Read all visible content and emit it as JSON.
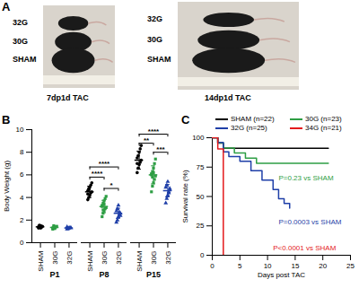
{
  "image_panel": {
    "label": "A",
    "photos": [
      {
        "caption": "7dp1d TAC",
        "rows": [
          "32G",
          "30G",
          "SHAM"
        ]
      },
      {
        "caption": "14dp1d TAC",
        "rows": [
          "32G",
          "30G",
          "SHAM"
        ]
      }
    ]
  },
  "chart_data": [
    {
      "type": "scatter",
      "label": "B",
      "ylabel": "Body Weight (g)",
      "ylim": [
        0,
        10
      ],
      "yticks": [
        0,
        2,
        4,
        6,
        8,
        10
      ],
      "categories": [
        "P1",
        "P8",
        "P15"
      ],
      "series": [
        {
          "name": "SHAM",
          "color": "#000000",
          "marker": "circle",
          "values": [
            1.4,
            4.5,
            7.3
          ],
          "errors": [
            0.15,
            0.5,
            0.8
          ],
          "points": [
            [
              1.3,
              1.4,
              1.5,
              1.35,
              1.45,
              1.4,
              1.55,
              1.3
            ],
            [
              3.8,
              4.0,
              4.2,
              4.4,
              4.5,
              4.6,
              4.7,
              4.9,
              5.1,
              5.3,
              4.3,
              4.8
            ],
            [
              6.2,
              6.6,
              6.9,
              7.1,
              7.3,
              7.5,
              7.7,
              8.0,
              8.3,
              8.6,
              7.0
            ]
          ]
        },
        {
          "name": "30G",
          "color": "#2e9e44",
          "marker": "square",
          "values": [
            1.35,
            3.2,
            6.0
          ],
          "errors": [
            0.1,
            0.55,
            0.8
          ],
          "points": [
            [
              1.2,
              1.3,
              1.35,
              1.4,
              1.45,
              1.3,
              1.5,
              1.25
            ],
            [
              2.3,
              2.6,
              2.8,
              3.0,
              3.1,
              3.3,
              3.5,
              3.7,
              3.9,
              4.1,
              3.2,
              2.9,
              3.4
            ],
            [
              4.5,
              5.0,
              5.3,
              5.6,
              5.9,
              6.1,
              6.3,
              6.6,
              7.0,
              7.4,
              6.0,
              5.8,
              6.2
            ]
          ]
        },
        {
          "name": "32G",
          "color": "#1f3fa8",
          "marker": "triangle",
          "values": [
            1.3,
            2.6,
            4.6
          ],
          "errors": [
            0.07,
            0.45,
            0.55
          ],
          "points": [
            [
              1.2,
              1.25,
              1.3,
              1.35,
              1.3,
              1.4,
              1.25
            ],
            [
              1.8,
              2.0,
              2.3,
              2.5,
              2.6,
              2.8,
              3.0,
              3.3,
              2.7,
              2.4
            ],
            [
              3.5,
              3.9,
              4.2,
              4.5,
              4.7,
              4.9,
              5.1,
              5.4,
              4.4,
              4.8
            ]
          ]
        }
      ],
      "annotations": [
        {
          "category": "P8",
          "from": "SHAM",
          "to": "30G",
          "y": 5.8,
          "text": "****"
        },
        {
          "category": "P8",
          "from": "SHAM",
          "to": "32G",
          "y": 6.7,
          "text": "****"
        },
        {
          "category": "P8",
          "from": "30G",
          "to": "32G",
          "y": 4.8,
          "text": "*"
        },
        {
          "category": "P15",
          "from": "SHAM",
          "to": "30G",
          "y": 8.8,
          "text": "**"
        },
        {
          "category": "P15",
          "from": "30G",
          "to": "32G",
          "y": 8.0,
          "text": "***"
        },
        {
          "category": "P15",
          "from": "SHAM",
          "to": "32G",
          "y": 9.6,
          "text": "****"
        }
      ]
    },
    {
      "type": "line",
      "label": "C",
      "xlabel": "Days post TAC",
      "ylabel": "Survival rate (%)",
      "xlim": [
        0,
        25
      ],
      "xticks": [
        0,
        5,
        10,
        15,
        20,
        25
      ],
      "ylim": [
        0,
        100
      ],
      "yticks": [
        0,
        25,
        50,
        75,
        100
      ],
      "legend": "top",
      "line_style": "step",
      "series": [
        {
          "name": "SHAM (n=22)",
          "color": "#000000",
          "x": [
            0,
            1,
            2,
            21
          ],
          "values": [
            100,
            95.5,
            91,
            91
          ]
        },
        {
          "name": "30G (n=23)",
          "color": "#2e9e44",
          "x": [
            0,
            1,
            2,
            4,
            6,
            8,
            21
          ],
          "values": [
            100,
            95.7,
            91.3,
            87,
            82.6,
            78.3,
            78.3
          ]
        },
        {
          "name": "32G (n=25)",
          "color": "#1f3fa8",
          "x": [
            0,
            1,
            2,
            3,
            5,
            7,
            9,
            11,
            12,
            13,
            14
          ],
          "values": [
            100,
            96,
            88,
            84,
            80,
            72,
            64,
            56,
            48,
            44,
            40
          ]
        },
        {
          "name": "34G (n=21)",
          "color": "#e41a1c",
          "x": [
            0,
            1,
            2
          ],
          "values": [
            100,
            90.5,
            0
          ]
        }
      ],
      "annotations": [
        {
          "text": "P=0.23 vs SHAM",
          "x": 12,
          "y": 66,
          "color": "#2e9e44"
        },
        {
          "text": "P=0.0003 vs SHAM",
          "x": 12,
          "y": 28,
          "color": "#1f3fa8"
        },
        {
          "text": "P<0.0001 vs SHAM",
          "x": 11,
          "y": 6,
          "color": "#e41a1c"
        }
      ]
    }
  ]
}
